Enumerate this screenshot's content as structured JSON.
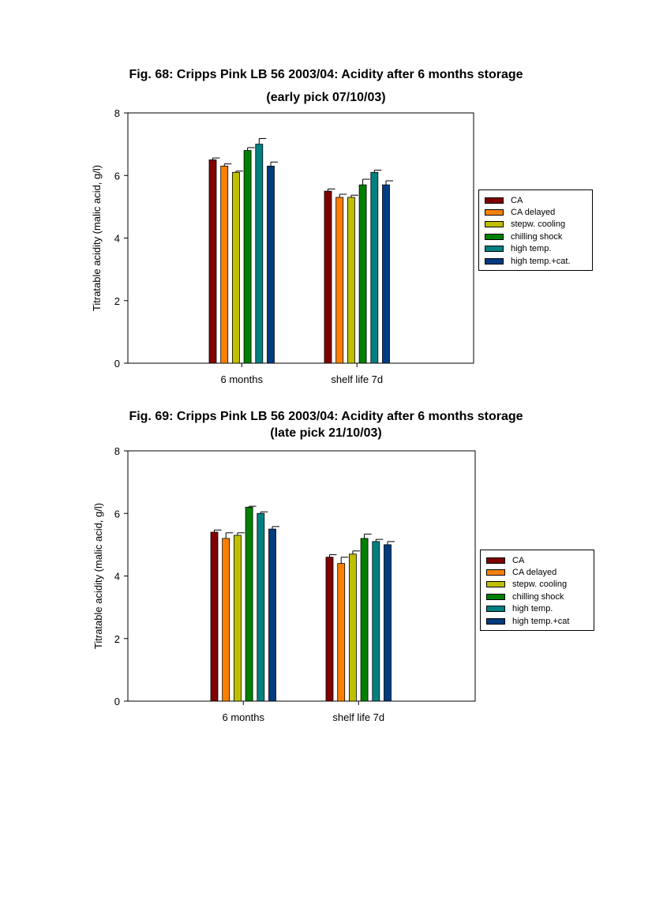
{
  "chart_data": [
    {
      "type": "bar",
      "title": "Fig. 68: Cripps Pink LB 56 2003/04: Acidity after 6 months storage",
      "subtitle": "(early pick 07/10/03)",
      "xlabel": "",
      "ylabel": "Titratable acidity (malic acid, g/l)",
      "ylim": [
        0,
        8
      ],
      "yticks": [
        "0",
        "2",
        "4",
        "6",
        "8"
      ],
      "grid": false,
      "legend_position": "right",
      "categories": [
        "6 months",
        "shelf life 7d"
      ],
      "series": [
        {
          "name": "CA",
          "color": "#800000",
          "values": [
            6.5,
            5.5
          ],
          "errors": [
            0.06,
            0.07
          ]
        },
        {
          "name": "CA delayed",
          "color": "#ff8000",
          "values": [
            6.3,
            5.3
          ],
          "errors": [
            0.07,
            0.1
          ]
        },
        {
          "name": "stepw. cooling",
          "color": "#bfbf00",
          "values": [
            6.1,
            5.3
          ],
          "errors": [
            0.04,
            0.07
          ]
        },
        {
          "name": "chilling shock",
          "color": "#008000",
          "values": [
            6.8,
            5.7
          ],
          "errors": [
            0.09,
            0.18
          ]
        },
        {
          "name": "high temp.",
          "color": "#008080",
          "values": [
            7.0,
            6.1
          ],
          "errors": [
            0.18,
            0.07
          ]
        },
        {
          "name": "high temp.+cat.",
          "color": "#003c80",
          "values": [
            6.3,
            5.7
          ],
          "errors": [
            0.13,
            0.13
          ]
        }
      ]
    },
    {
      "type": "bar",
      "title": "Fig. 69: Cripps Pink LB 56 2003/04: Acidity after 6 months storage",
      "subtitle": "(late pick 21/10/03)",
      "xlabel": "",
      "ylabel": "Titratable acidity (malic acid, g/l)",
      "ylim": [
        0,
        8
      ],
      "yticks": [
        "0",
        "2",
        "4",
        "6",
        "8"
      ],
      "grid": false,
      "legend_position": "right",
      "categories": [
        "6 months",
        "shelf life 7d"
      ],
      "series": [
        {
          "name": "CA",
          "color": "#800000",
          "values": [
            5.4,
            4.6
          ],
          "errors": [
            0.07,
            0.08
          ]
        },
        {
          "name": "CA delayed",
          "color": "#ff8000",
          "values": [
            5.2,
            4.4
          ],
          "errors": [
            0.18,
            0.2
          ]
        },
        {
          "name": "stepw. cooling",
          "color": "#bfbf00",
          "values": [
            5.3,
            4.7
          ],
          "errors": [
            0.08,
            0.1
          ]
        },
        {
          "name": "chilling shock",
          "color": "#008000",
          "values": [
            6.2,
            5.2
          ],
          "errors": [
            0.03,
            0.14
          ]
        },
        {
          "name": "high temp.",
          "color": "#008080",
          "values": [
            6.0,
            5.1
          ],
          "errors": [
            0.05,
            0.07
          ]
        },
        {
          "name": "high temp.+cat",
          "color": "#003c80",
          "values": [
            5.5,
            5.0
          ],
          "errors": [
            0.08,
            0.1
          ]
        }
      ]
    }
  ]
}
